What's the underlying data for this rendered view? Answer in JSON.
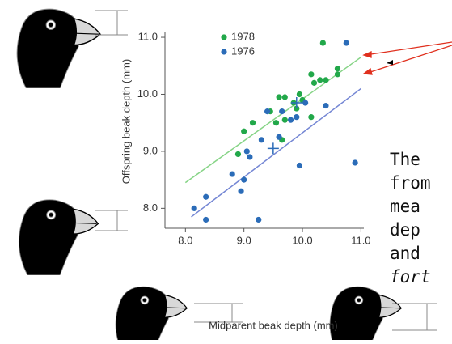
{
  "chart_data": {
    "type": "scatter",
    "x_label": "Midparent beak depth (mm)",
    "y_label": "Offspring beak depth (mm)",
    "xlim": [
      7.65,
      11.05
    ],
    "ylim": [
      7.65,
      11.1
    ],
    "xticks": [
      {
        "value": 8,
        "label": "8.0"
      },
      {
        "value": 9,
        "label": "9.0"
      },
      {
        "value": 10,
        "label": "10.0"
      },
      {
        "value": 11,
        "label": "11.0"
      }
    ],
    "yticks": [
      {
        "value": 8,
        "label": "8.0"
      },
      {
        "value": 9,
        "label": "9.0"
      },
      {
        "value": 10,
        "label": "10.0"
      },
      {
        "value": 11,
        "label": "11.0"
      }
    ],
    "series": [
      {
        "name": "1978",
        "color": "#22a84a",
        "x": [
          8.9,
          9.0,
          9.15,
          9.45,
          9.6,
          9.7,
          9.55,
          9.7,
          9.65,
          9.85,
          9.95,
          10.0,
          10.15,
          10.2,
          10.3,
          10.35,
          10.4,
          10.6,
          10.6,
          9.9,
          10.15
        ],
        "y": [
          8.95,
          9.35,
          9.5,
          9.7,
          9.95,
          9.95,
          9.5,
          9.55,
          9.2,
          9.85,
          10.0,
          9.9,
          10.35,
          10.2,
          10.25,
          10.9,
          10.25,
          10.45,
          10.35,
          9.75,
          9.6
        ]
      },
      {
        "name": "1976",
        "color": "#2b6cb8",
        "x": [
          8.15,
          8.35,
          8.35,
          8.8,
          8.95,
          9.0,
          9.05,
          9.1,
          9.25,
          9.3,
          9.4,
          9.6,
          9.65,
          9.8,
          9.9,
          9.95,
          10.05,
          10.4,
          10.75,
          10.9
        ],
        "y": [
          8.0,
          7.8,
          8.2,
          8.6,
          8.3,
          8.5,
          9.0,
          8.9,
          7.8,
          9.2,
          9.7,
          9.25,
          9.7,
          9.55,
          9.6,
          8.75,
          9.85,
          9.8,
          10.9,
          8.8
        ]
      }
    ],
    "fits": [
      {
        "color": "#86d486",
        "x": [
          8.0,
          11.0
        ],
        "y": [
          8.45,
          10.65
        ]
      },
      {
        "color": "#7486d4",
        "x": [
          8.1,
          11.0
        ],
        "y": [
          7.85,
          10.1
        ]
      }
    ],
    "means": [
      {
        "color": "#2b6cb8",
        "x": [
          9.5
        ],
        "y": [
          9.05
        ]
      },
      {
        "color": "#2b6cb8",
        "x": [
          9.9
        ],
        "y": [
          9.85
        ]
      }
    ]
  },
  "annotation": {
    "lines": [
      "The",
      "from",
      "mea",
      "dep",
      "and",
      "fort"
    ]
  }
}
